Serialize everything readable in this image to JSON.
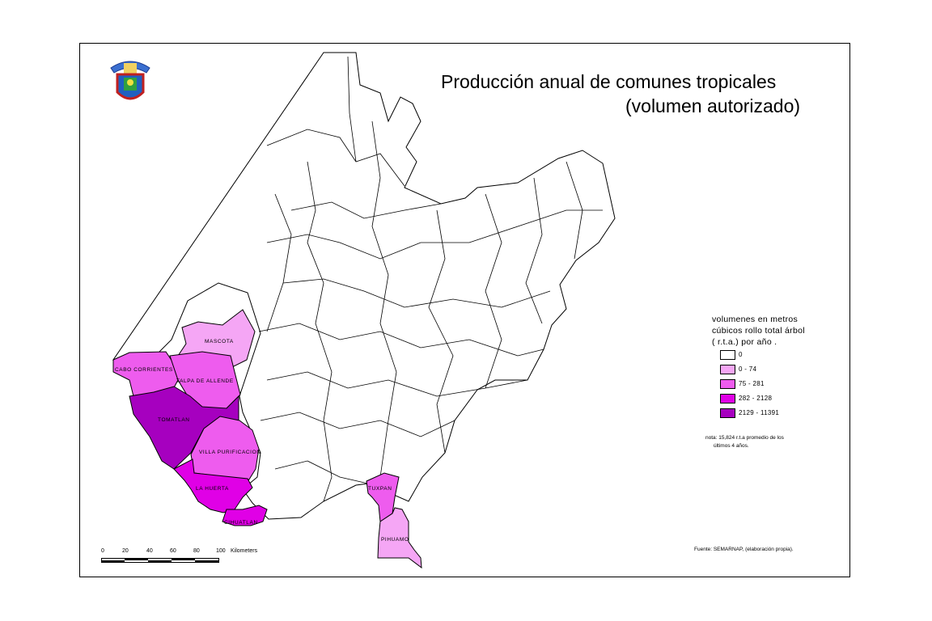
{
  "title": {
    "line1": "Producción anual de comunes tropicales",
    "line2": "(volumen autorizado)"
  },
  "logo": {
    "name": "university-seal-logo"
  },
  "legend": {
    "heading_lines": [
      "volumenes en metros",
      "cúbicos rollo total árbol",
      "( r.t.a.) por año ."
    ],
    "classes": [
      {
        "label": "0",
        "color": "#ffffff"
      },
      {
        "label": "0 - 74",
        "color": "#f5a6f5"
      },
      {
        "label": "75 - 281",
        "color": "#ee5cee"
      },
      {
        "label": "282 - 2128",
        "color": "#e000e6"
      },
      {
        "label": "2129 - 11391",
        "color": "#a600bf"
      }
    ]
  },
  "note": {
    "line1": "nota: 15,824 r.t.a promedio de los",
    "line2": "últimos 4 años."
  },
  "source": "Fuente: SEMARNAP, (elaboración propia).",
  "scale_bar": {
    "ticks": [
      "0",
      "20",
      "40",
      "60",
      "80",
      "100"
    ],
    "unit": "Kilometers"
  },
  "municipalities": [
    {
      "name": "MASCOTA",
      "class": "0 - 74"
    },
    {
      "name": "CABO CORRIENTES",
      "class": "75 - 281"
    },
    {
      "name": "TALPA DE ALLENDE",
      "class": "75 - 281"
    },
    {
      "name": "TOMATLAN",
      "class": "2129 - 11391"
    },
    {
      "name": "VILLA PURIFICACION",
      "class": "75 - 281"
    },
    {
      "name": "LA HUERTA",
      "class": "282 - 2128"
    },
    {
      "name": "CIHUATLAN",
      "class": "282 - 2128"
    },
    {
      "name": "TUXPAN",
      "class": "75 - 281"
    },
    {
      "name": "PIHUAMO",
      "class": "0 - 74"
    }
  ]
}
